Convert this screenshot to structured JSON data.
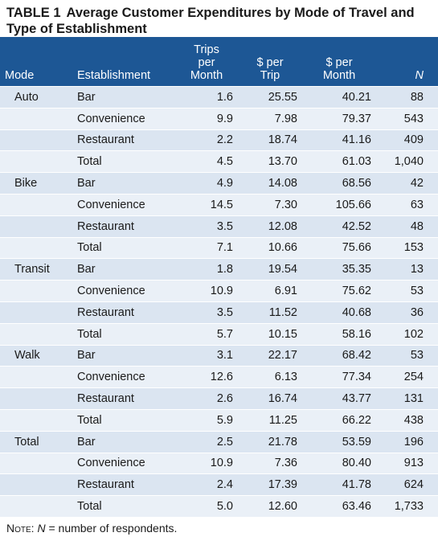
{
  "header": {
    "label": "TABLE 1",
    "title": "Average Customer Expenditures by Mode of Travel and Type of Establishment"
  },
  "table": {
    "columns": [
      "Mode",
      "Establishment",
      "Trips\nper\nMonth",
      "$ per\nTrip",
      "$ per\nMonth",
      "N"
    ],
    "groups": [
      {
        "mode": "Auto",
        "rows": [
          [
            "Bar",
            "1.6",
            "25.55",
            "40.21",
            "88"
          ],
          [
            "Convenience",
            "9.9",
            "7.98",
            "79.37",
            "543"
          ],
          [
            "Restaurant",
            "2.2",
            "18.74",
            "41.16",
            "409"
          ],
          [
            "Total",
            "4.5",
            "13.70",
            "61.03",
            "1,040"
          ]
        ]
      },
      {
        "mode": "Bike",
        "rows": [
          [
            "Bar",
            "4.9",
            "14.08",
            "68.56",
            "42"
          ],
          [
            "Convenience",
            "14.5",
            "7.30",
            "105.66",
            "63"
          ],
          [
            "Restaurant",
            "3.5",
            "12.08",
            "42.52",
            "48"
          ],
          [
            "Total",
            "7.1",
            "10.66",
            "75.66",
            "153"
          ]
        ]
      },
      {
        "mode": "Transit",
        "rows": [
          [
            "Bar",
            "1.8",
            "19.54",
            "35.35",
            "13"
          ],
          [
            "Convenience",
            "10.9",
            "6.91",
            "75.62",
            "53"
          ],
          [
            "Restaurant",
            "3.5",
            "11.52",
            "40.68",
            "36"
          ],
          [
            "Total",
            "5.7",
            "10.15",
            "58.16",
            "102"
          ]
        ]
      },
      {
        "mode": "Walk",
        "rows": [
          [
            "Bar",
            "3.1",
            "22.17",
            "68.42",
            "53"
          ],
          [
            "Convenience",
            "12.6",
            "6.13",
            "77.34",
            "254"
          ],
          [
            "Restaurant",
            "2.6",
            "16.74",
            "43.77",
            "131"
          ],
          [
            "Total",
            "5.9",
            "11.25",
            "66.22",
            "438"
          ]
        ]
      },
      {
        "mode": "Total",
        "rows": [
          [
            "Bar",
            "2.5",
            "21.78",
            "53.59",
            "196"
          ],
          [
            "Convenience",
            "10.9",
            "7.36",
            "80.40",
            "913"
          ],
          [
            "Restaurant",
            "2.4",
            "17.39",
            "41.78",
            "624"
          ],
          [
            "Total",
            "5.0",
            "12.60",
            "63.46",
            "1,733"
          ]
        ]
      }
    ]
  },
  "note": {
    "label": "Note:",
    "symbol": "N",
    "text": "= number of respondents."
  }
}
